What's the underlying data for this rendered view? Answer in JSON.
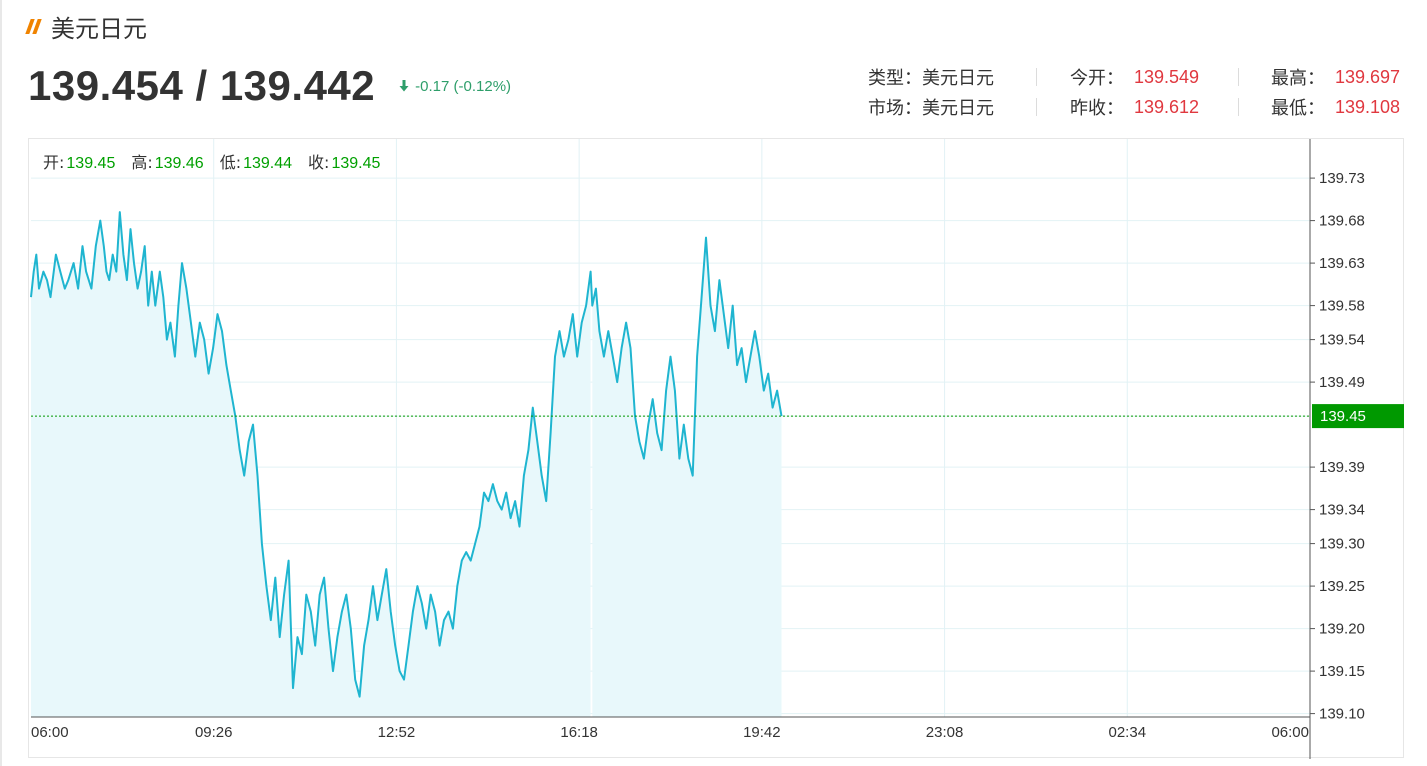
{
  "header": {
    "title": "美元日元"
  },
  "quote": {
    "price_text": "139.454 / 139.442",
    "change_text": "-0.17 (-0.12%)",
    "change_direction": "down",
    "down_color": "#2e9e6a"
  },
  "info": {
    "type_label": "类型：",
    "type_value": "美元日元",
    "market_label": "市场：",
    "market_value": "美元日元",
    "open_label": "今开：",
    "open_value": "139.549",
    "prev_close_label": "昨收：",
    "prev_close_value": "139.612",
    "high_label": "最高：",
    "high_value": "139.697",
    "low_label": "最低：",
    "low_value": "139.108",
    "value_color": "#e0383f"
  },
  "chart_data": {
    "type": "area",
    "ohlc_legend": [
      {
        "label": "开:",
        "value": "139.45"
      },
      {
        "label": "高:",
        "value": "139.46"
      },
      {
        "label": "低:",
        "value": "139.44"
      },
      {
        "label": "收:",
        "value": "139.45"
      }
    ],
    "x_ticks": [
      "06:00",
      "09:26",
      "12:52",
      "16:18",
      "19:42",
      "23:08",
      "02:34",
      "06:00"
    ],
    "y_ticks": [
      "139.73",
      "139.68",
      "139.63",
      "139.58",
      "139.54",
      "139.49",
      "139.45",
      "139.39",
      "139.34",
      "139.30",
      "139.25",
      "139.20",
      "139.15",
      "139.10"
    ],
    "ylim": [
      139.096,
      139.776
    ],
    "x_range_minutes": [
      0,
      1440
    ],
    "current_value": 139.45,
    "current_label": "139.45",
    "line_color": "#1fb5d0",
    "fill_color": "#e8f8fb",
    "current_color": "#009900",
    "grid": true,
    "series": [
      {
        "x": [
          0,
          3,
          6,
          9,
          14,
          18,
          22,
          28,
          33,
          38,
          42,
          48,
          53,
          58,
          62,
          68,
          73,
          78,
          82,
          85,
          88,
          92,
          96,
          100,
          104,
          108,
          112,
          116,
          120,
          124,
          128,
          132,
          136,
          140,
          145,
          149,
          153,
          157,
          162,
          166,
          170,
          175,
          180,
          185,
          190,
          195,
          200,
          205,
          210,
          215,
          220,
          225,
          230,
          235,
          240,
          245,
          250,
          255,
          260,
          265,
          270,
          275,
          280,
          285,
          290,
          295,
          300,
          305,
          310,
          315,
          320,
          325,
          330,
          335,
          340,
          345,
          350,
          355,
          360,
          365,
          370,
          375,
          380,
          385,
          390,
          395,
          400,
          405,
          410,
          415,
          420,
          425,
          430,
          435,
          440,
          445,
          450,
          455,
          460,
          465,
          470,
          475,
          480,
          485,
          490,
          495,
          500,
          505,
          510,
          515,
          520,
          525,
          530,
          535,
          540,
          545,
          550,
          555,
          560,
          565,
          570,
          575,
          580,
          585,
          590,
          595,
          600,
          605,
          610,
          615,
          620,
          625,
          630
        ],
        "values": [
          139.59,
          139.62,
          139.64,
          139.6,
          139.62,
          139.61,
          139.59,
          139.64,
          139.62,
          139.6,
          139.61,
          139.63,
          139.6,
          139.65,
          139.62,
          139.6,
          139.65,
          139.68,
          139.65,
          139.62,
          139.61,
          139.64,
          139.62,
          139.69,
          139.64,
          139.61,
          139.67,
          139.63,
          139.6,
          139.62,
          139.65,
          139.58,
          139.62,
          139.58,
          139.62,
          139.59,
          139.54,
          139.56,
          139.52,
          139.58,
          139.63,
          139.6,
          139.56,
          139.52,
          139.56,
          139.54,
          139.5,
          139.53,
          139.57,
          139.55,
          139.51,
          139.48,
          139.45,
          139.41,
          139.38,
          139.42,
          139.44,
          139.38,
          139.3,
          139.25,
          139.21,
          139.26,
          139.19,
          139.24,
          139.28,
          139.13,
          139.19,
          139.17,
          139.24,
          139.22,
          139.18,
          139.24,
          139.26,
          139.2,
          139.15,
          139.19,
          139.22,
          139.24,
          139.2,
          139.14,
          139.12,
          139.18,
          139.21,
          139.25,
          139.21,
          139.24,
          139.27,
          139.22,
          139.18,
          139.15,
          139.14,
          139.18,
          139.22,
          139.25,
          139.23,
          139.2,
          139.24,
          139.22,
          139.18,
          139.21,
          139.22,
          139.2,
          139.25,
          139.28,
          139.29,
          139.28,
          139.3,
          139.32,
          139.36,
          139.35,
          139.37,
          139.35,
          139.34,
          139.36,
          139.33,
          139.35,
          139.32,
          139.38,
          139.41,
          139.46,
          139.42,
          139.38,
          139.35,
          139.43,
          139.52,
          139.55,
          139.52,
          139.54,
          139.57,
          139.52,
          139.56,
          139.58,
          139.62
        ]
      },
      {
        "x": [
          632,
          636,
          640,
          645,
          650,
          655,
          660,
          665,
          670,
          675,
          680,
          685,
          690,
          695,
          700,
          705,
          710,
          715,
          720,
          725,
          730,
          735,
          740,
          745,
          750,
          755,
          760,
          765,
          770,
          775,
          780,
          785,
          790,
          795,
          800,
          805,
          810,
          815,
          820,
          825,
          830,
          835,
          840,
          845
        ],
        "values": [
          139.58,
          139.6,
          139.55,
          139.52,
          139.55,
          139.52,
          139.49,
          139.53,
          139.56,
          139.53,
          139.45,
          139.42,
          139.4,
          139.44,
          139.47,
          139.43,
          139.41,
          139.48,
          139.52,
          139.48,
          139.4,
          139.44,
          139.4,
          139.38,
          139.52,
          139.59,
          139.66,
          139.58,
          139.55,
          139.61,
          139.57,
          139.53,
          139.58,
          139.51,
          139.53,
          139.49,
          139.52,
          139.55,
          139.52,
          139.48,
          139.5,
          139.46,
          139.48,
          139.45
        ]
      }
    ]
  }
}
